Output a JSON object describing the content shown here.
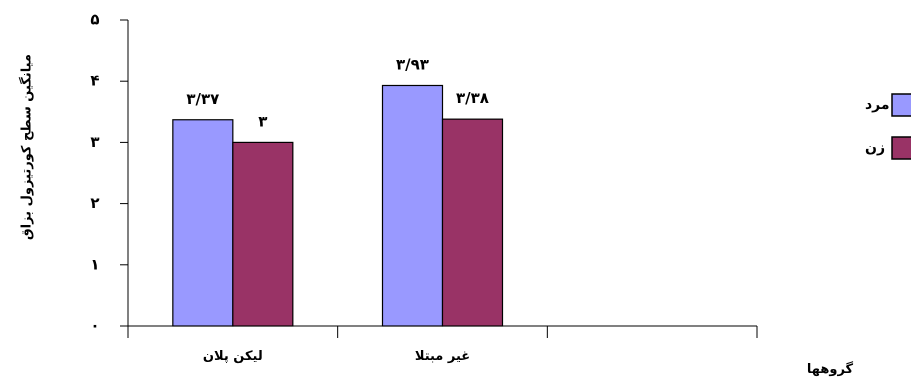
{
  "chart_data": {
    "type": "bar",
    "categories": [
      "لیکن پلان",
      "غیر مبتلا"
    ],
    "series": [
      {
        "name": "مرد",
        "values": [
          3.37,
          3.93
        ],
        "labels": [
          "۳/۳۷",
          "۳/۹۳"
        ],
        "color": "#9999ff"
      },
      {
        "name": "زن",
        "values": [
          3.0,
          3.38
        ],
        "labels": [
          "۳",
          "۳/۳۸"
        ],
        "color": "#993366"
      }
    ],
    "ylim": [
      0,
      5
    ],
    "yticks": [
      0,
      1,
      2,
      3,
      4,
      5
    ],
    "ytick_labels": [
      "۰",
      "۱",
      "۲",
      "۳",
      "۴",
      "۵"
    ],
    "ylabel": "میانگین سطح کورتیزول بزاق",
    "xlabel": "گروهها",
    "legend_position": "right",
    "grid": false
  }
}
